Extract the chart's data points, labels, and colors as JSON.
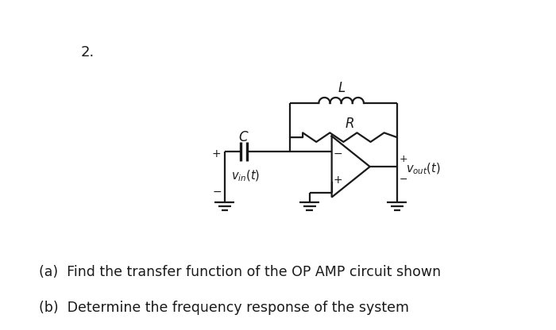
{
  "bg_color": "#ffffff",
  "line_color": "#1a1a1a",
  "line_width": 1.6,
  "fig_width": 7.0,
  "fig_height": 4.16,
  "dpi": 100,
  "number_label": "2.",
  "number_fontsize": 13,
  "label_L": "$L$",
  "label_R": "$R$",
  "label_C": "$C$",
  "label_vin": "$v_{in}(t)$",
  "label_vout": "$v_{out}(t)$",
  "text_a": "(a)  Find the transfer function of the OP AMP circuit shown",
  "text_b": "(b)  Determine the frequency response of the system",
  "text_fontsize": 12.5
}
